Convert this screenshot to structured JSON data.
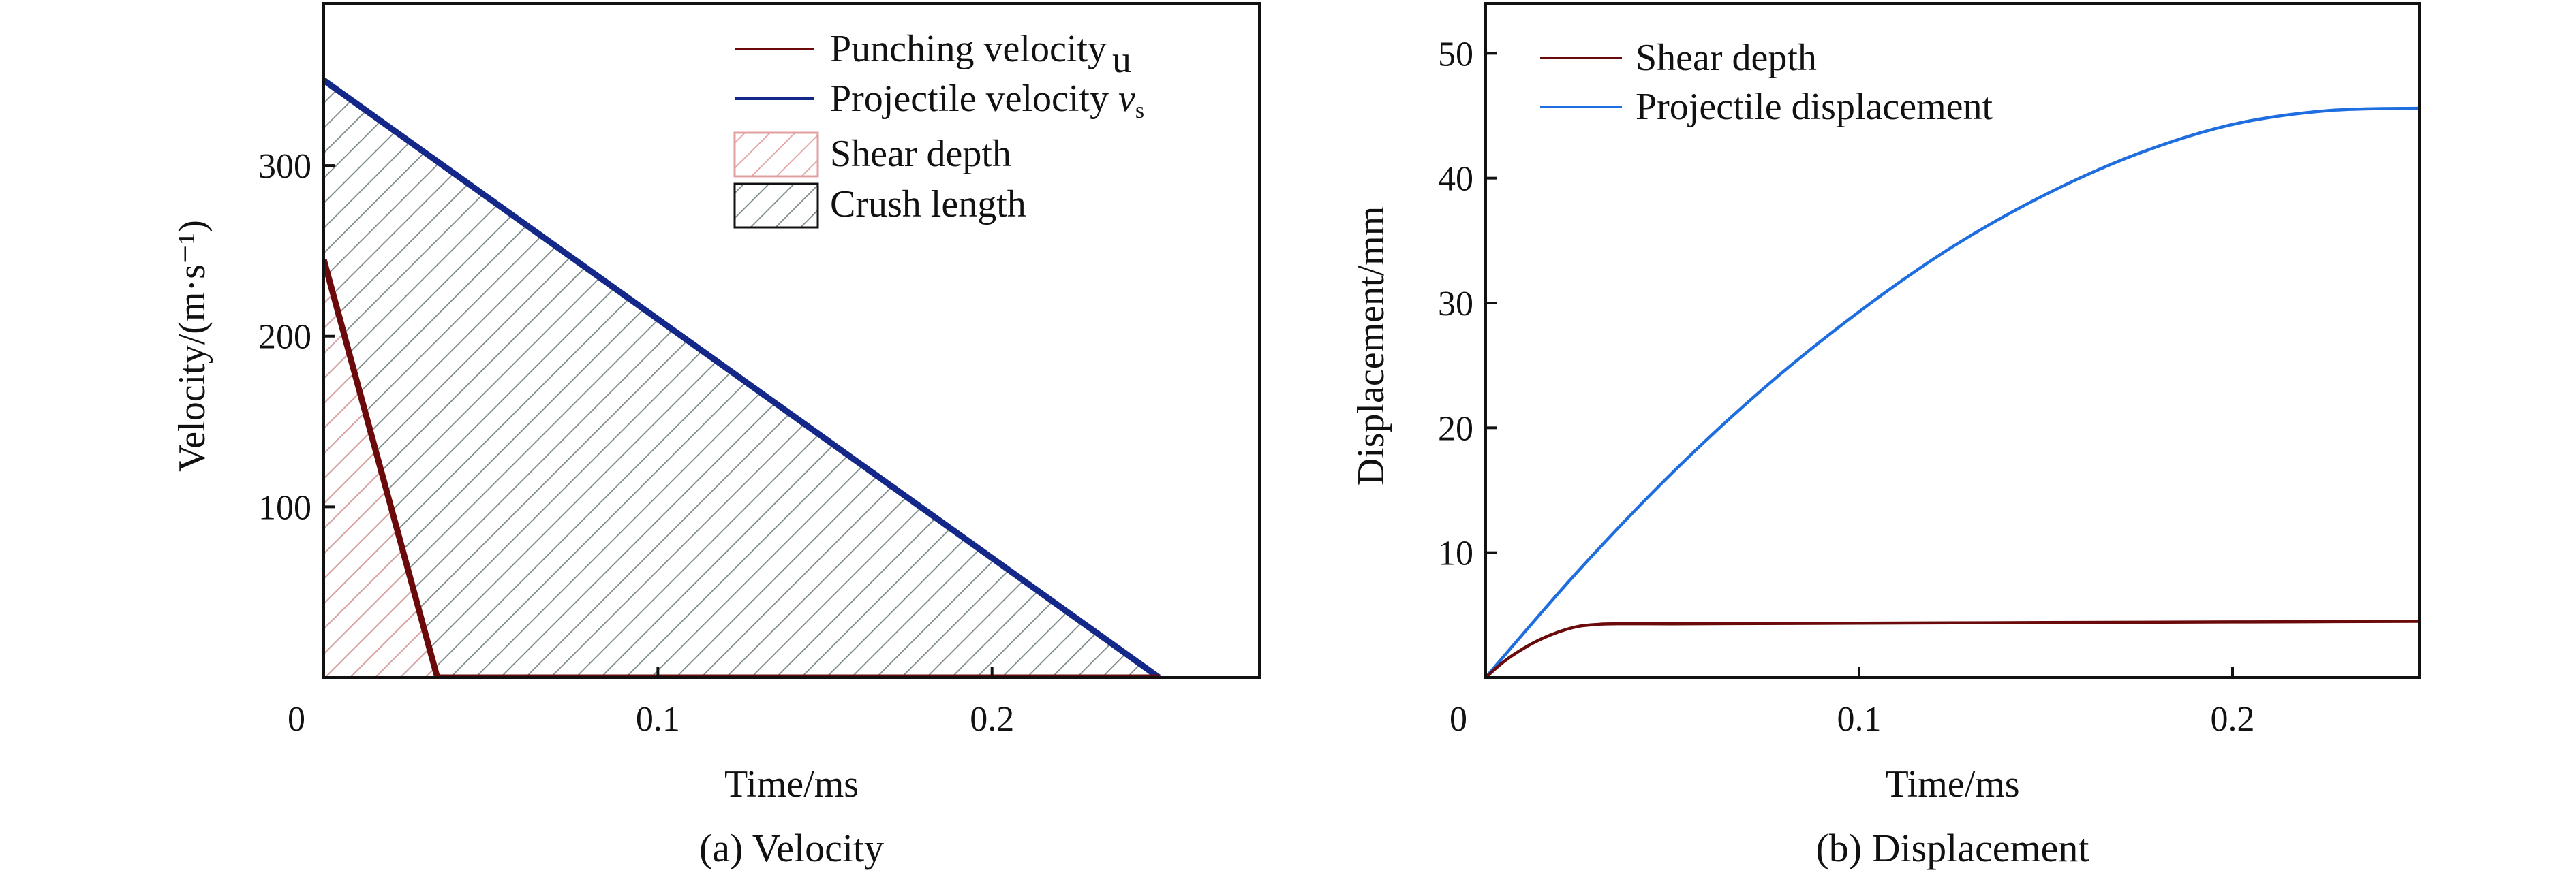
{
  "colors": {
    "punching": "#6b0a0a",
    "projectile_a": "#14288a",
    "projectile_b": "#1f6ee0",
    "shear_hatch": "#e0a0a0",
    "crush_hatch": "#7a8888",
    "axis": "#111111"
  },
  "chart_data": [
    {
      "type": "line",
      "caption": "(a) Velocity",
      "xlabel": "Time/ms",
      "ylabel": "Velocity/(m·s⁻¹)",
      "xlim": [
        0,
        0.28
      ],
      "ylim": [
        0,
        395
      ],
      "x_ticks": [
        0.1,
        0.2
      ],
      "y_ticks": [
        100,
        200,
        300
      ],
      "origin_label": "0",
      "legend_position": "top-right",
      "series": [
        {
          "name": "Punching velocity u",
          "x": [
            0,
            0.034,
            0.25
          ],
          "y": [
            245,
            0,
            0
          ]
        },
        {
          "name": "Projectile velocity vs",
          "x": [
            0,
            0.25
          ],
          "y": [
            350,
            0
          ]
        }
      ],
      "areas": [
        {
          "name": "Shear depth",
          "pattern": "hatched"
        },
        {
          "name": "Crush length",
          "pattern": "hatched"
        }
      ],
      "legend_entries": [
        {
          "label": "Punching velocity",
          "suffix": "u"
        },
        {
          "label": "Projectile velocity",
          "math": "v",
          "sub": "s"
        },
        {
          "label": "Shear depth"
        },
        {
          "label": "Crush length"
        }
      ]
    },
    {
      "type": "line",
      "caption": "(b) Displacement",
      "xlabel": "Time/ms",
      "ylabel": "Displacement/mm",
      "xlim": [
        0,
        0.25
      ],
      "ylim": [
        0,
        54
      ],
      "x_ticks": [
        0.1,
        0.2
      ],
      "y_ticks": [
        10,
        20,
        30,
        40,
        50
      ],
      "origin_label": "0",
      "legend_position": "top-left",
      "series": [
        {
          "name": "Shear depth",
          "x": [
            0,
            0.005,
            0.01,
            0.015,
            0.02,
            0.025,
            0.03,
            0.034,
            0.05,
            0.1,
            0.15,
            0.2,
            0.25
          ],
          "y": [
            0,
            1.3,
            2.3,
            3.1,
            3.7,
            4.1,
            4.25,
            4.3,
            4.3,
            4.35,
            4.4,
            4.45,
            4.5
          ]
        },
        {
          "name": "Projectile displacement",
          "x": [
            0,
            0.025,
            0.05,
            0.075,
            0.1,
            0.125,
            0.15,
            0.175,
            0.2,
            0.225,
            0.25
          ],
          "y": [
            0,
            8.6,
            16.4,
            23.3,
            29.3,
            34.5,
            38.7,
            42.0,
            44.3,
            45.4,
            45.6
          ]
        }
      ]
    }
  ]
}
